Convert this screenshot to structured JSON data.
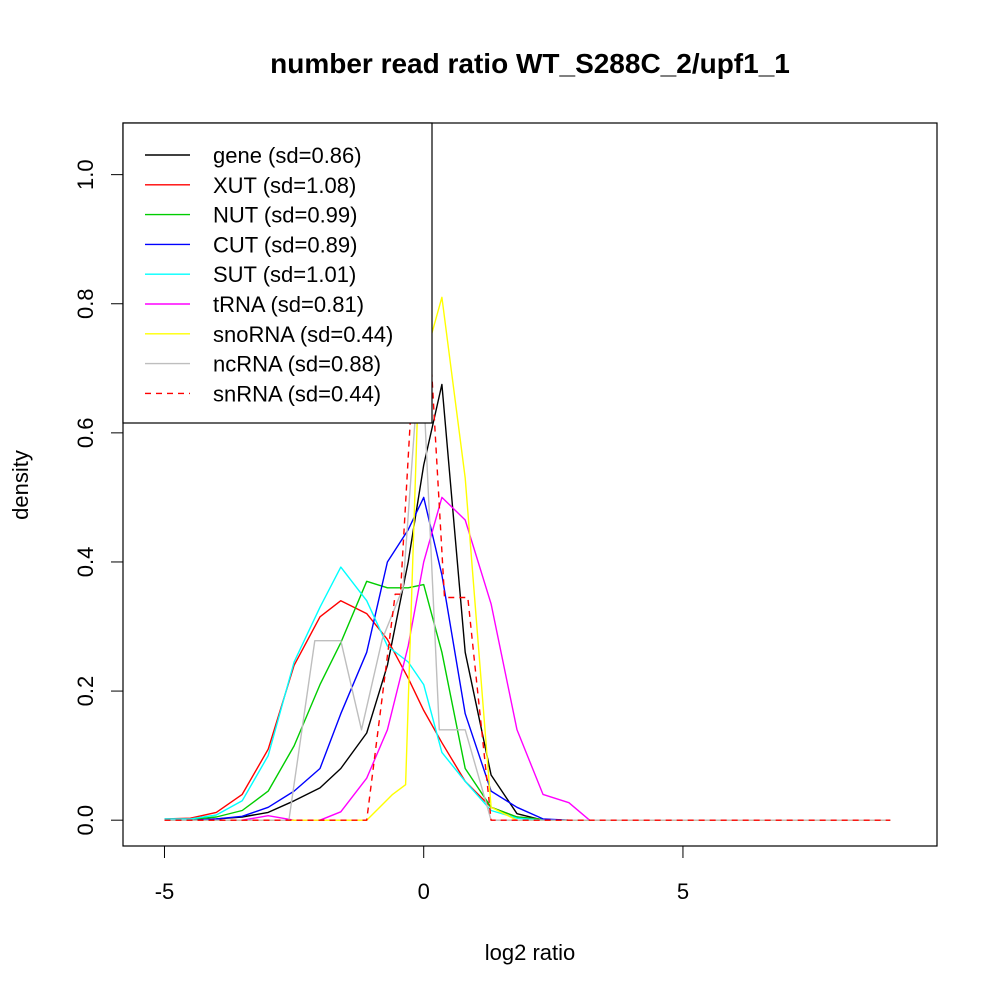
{
  "chart_data": {
    "type": "line",
    "title": "number read ratio WT_S288C_2/upf1_1",
    "xlabel": "log2 ratio",
    "ylabel": "density",
    "xlim": [
      -5.8,
      9.9
    ],
    "ylim": [
      -0.04,
      1.08
    ],
    "xticks": [
      -5,
      0,
      5
    ],
    "xtick_labels": [
      "-5",
      "0",
      "5"
    ],
    "yticks": [
      0.0,
      0.2,
      0.4,
      0.6,
      0.8,
      1.0
    ],
    "ytick_labels": [
      "0.0",
      "0.2",
      "0.4",
      "0.6",
      "0.8",
      "1.0"
    ],
    "grid": false,
    "legend_position": "top-left",
    "series": [
      {
        "name": "gene (sd=0.86)",
        "color": "#000000",
        "dash": "solid",
        "x": [
          -5.0,
          -4.5,
          -4.0,
          -3.5,
          -3.0,
          -2.5,
          -2.0,
          -1.6,
          -1.1,
          -0.7,
          -0.3,
          0.0,
          0.35,
          0.8,
          1.3,
          1.8,
          2.3,
          2.8,
          4,
          5,
          6,
          7,
          8,
          9
        ],
        "y": [
          0.0,
          0.0,
          0.002,
          0.005,
          0.012,
          0.03,
          0.05,
          0.08,
          0.135,
          0.24,
          0.4,
          0.55,
          0.675,
          0.26,
          0.07,
          0.01,
          0.0,
          0.0,
          0,
          0,
          0,
          0,
          0,
          0
        ]
      },
      {
        "name": "XUT (sd=1.08)",
        "color": "#ff0000",
        "dash": "solid",
        "x": [
          -5.0,
          -4.5,
          -4.0,
          -3.5,
          -3.0,
          -2.5,
          -2.0,
          -1.6,
          -1.1,
          -0.7,
          -0.3,
          0.0,
          0.35,
          0.8,
          1.3,
          1.8,
          2.3,
          2.8,
          4,
          5,
          6,
          7,
          8,
          9
        ],
        "y": [
          0.002,
          0.003,
          0.012,
          0.04,
          0.11,
          0.24,
          0.315,
          0.34,
          0.32,
          0.28,
          0.22,
          0.17,
          0.12,
          0.06,
          0.02,
          0.005,
          0.001,
          0.0,
          0,
          0,
          0,
          0,
          0,
          0
        ]
      },
      {
        "name": "NUT (sd=0.99)",
        "color": "#00cd00",
        "dash": "solid",
        "x": [
          -5.0,
          -4.5,
          -4.0,
          -3.5,
          -3.0,
          -2.5,
          -2.0,
          -1.6,
          -1.1,
          -0.7,
          -0.3,
          0.0,
          0.35,
          0.8,
          1.3,
          1.8,
          2.3,
          2.8,
          4,
          5,
          6,
          7,
          8,
          9
        ],
        "y": [
          0.0,
          0.001,
          0.005,
          0.015,
          0.045,
          0.115,
          0.21,
          0.275,
          0.37,
          0.36,
          0.36,
          0.365,
          0.26,
          0.08,
          0.02,
          0.005,
          0.001,
          0.0,
          0,
          0,
          0,
          0,
          0,
          0
        ]
      },
      {
        "name": "CUT (sd=0.89)",
        "color": "#0000ff",
        "dash": "solid",
        "x": [
          -5.0,
          -4.5,
          -4.0,
          -3.5,
          -3.0,
          -2.5,
          -2.0,
          -1.6,
          -1.1,
          -0.7,
          -0.3,
          0.0,
          0.35,
          0.8,
          1.3,
          1.8,
          2.3,
          2.8,
          4,
          5,
          6,
          7,
          8,
          9
        ],
        "y": [
          0.0,
          0.0,
          0.002,
          0.006,
          0.02,
          0.045,
          0.08,
          0.165,
          0.26,
          0.4,
          0.45,
          0.5,
          0.38,
          0.165,
          0.045,
          0.02,
          0.002,
          0.0,
          0,
          0,
          0,
          0,
          0,
          0
        ]
      },
      {
        "name": "SUT (sd=1.01)",
        "color": "#00ffff",
        "dash": "solid",
        "x": [
          -5.0,
          -4.5,
          -4.0,
          -3.5,
          -3.0,
          -2.5,
          -2.0,
          -1.6,
          -1.1,
          -0.7,
          -0.3,
          0.0,
          0.35,
          0.8,
          1.3,
          1.8,
          2.3,
          2.8,
          4,
          5,
          6,
          7,
          8,
          9
        ],
        "y": [
          0.002,
          0.002,
          0.008,
          0.03,
          0.1,
          0.245,
          0.33,
          0.392,
          0.34,
          0.27,
          0.245,
          0.21,
          0.105,
          0.06,
          0.015,
          0.003,
          0.0,
          0.0,
          0,
          0,
          0,
          0,
          0,
          0
        ]
      },
      {
        "name": "tRNA (sd=0.81)",
        "color": "#ff00ff",
        "dash": "solid",
        "x": [
          -5.0,
          -4.5,
          -4.0,
          -3.5,
          -3.0,
          -2.5,
          -2.0,
          -1.6,
          -1.1,
          -0.7,
          -0.3,
          0.0,
          0.35,
          0.8,
          1.3,
          1.8,
          2.3,
          2.8,
          3.2,
          4,
          5,
          6,
          7,
          8,
          9
        ],
        "y": [
          0.0,
          0.0,
          0.0,
          0.0,
          0.007,
          0.0,
          0.0,
          0.013,
          0.065,
          0.14,
          0.27,
          0.4,
          0.5,
          0.465,
          0.335,
          0.14,
          0.04,
          0.027,
          0.0,
          0,
          0,
          0,
          0,
          0,
          0
        ]
      },
      {
        "name": "snoRNA (sd=0.44)",
        "color": "#ffff00",
        "dash": "solid",
        "x": [
          -5.0,
          -4.5,
          -4.0,
          -3.5,
          -3.0,
          -2.5,
          -2.0,
          -1.6,
          -1.1,
          -0.6,
          -0.35,
          -0.1,
          0.35,
          0.8,
          1.3,
          1.8,
          2.3,
          4,
          5,
          6,
          7,
          8,
          9
        ],
        "y": [
          0.0,
          0.0,
          0.0,
          0.0,
          0.0,
          0.0,
          0.0,
          0.0,
          0.0,
          0.04,
          0.055,
          0.68,
          0.81,
          0.53,
          0.02,
          0.0,
          0.0,
          0,
          0,
          0,
          0,
          0,
          0
        ]
      },
      {
        "name": "ncRNA (sd=0.88)",
        "color": "#bebebe",
        "dash": "solid",
        "x": [
          -5.0,
          -4.5,
          -4.0,
          -3.5,
          -3.0,
          -2.6,
          -2.1,
          -1.6,
          -1.2,
          -0.8,
          -0.4,
          -0.05,
          0.3,
          0.8,
          1.3,
          1.8,
          2.3,
          4,
          5,
          6,
          7,
          8,
          9
        ],
        "y": [
          0.0,
          0.0,
          0.0,
          0.0,
          0.0,
          0.0,
          0.278,
          0.278,
          0.14,
          0.28,
          0.36,
          0.75,
          0.14,
          0.14,
          0.0,
          0.0,
          0.0,
          0,
          0,
          0,
          0,
          0,
          0
        ]
      },
      {
        "name": "snRNA (sd=0.44)",
        "color": "#ff0000",
        "dash": "dashed",
        "x": [
          -5.0,
          -4.5,
          -4.0,
          -3.5,
          -3.0,
          -2.5,
          -2.0,
          -1.5,
          -1.1,
          -0.55,
          -0.45,
          -0.2,
          0.15,
          0.4,
          0.85,
          1.3,
          1.8,
          2.3,
          4,
          5,
          6,
          7,
          8,
          9
        ],
        "y": [
          0.0,
          0.0,
          0.0,
          0.0,
          0.0,
          0.0,
          0.0,
          0.0,
          0.0,
          0.35,
          0.35,
          0.7,
          0.7,
          0.345,
          0.345,
          0.0,
          0.0,
          0.0,
          0,
          0,
          0,
          0,
          0,
          0
        ]
      }
    ]
  }
}
